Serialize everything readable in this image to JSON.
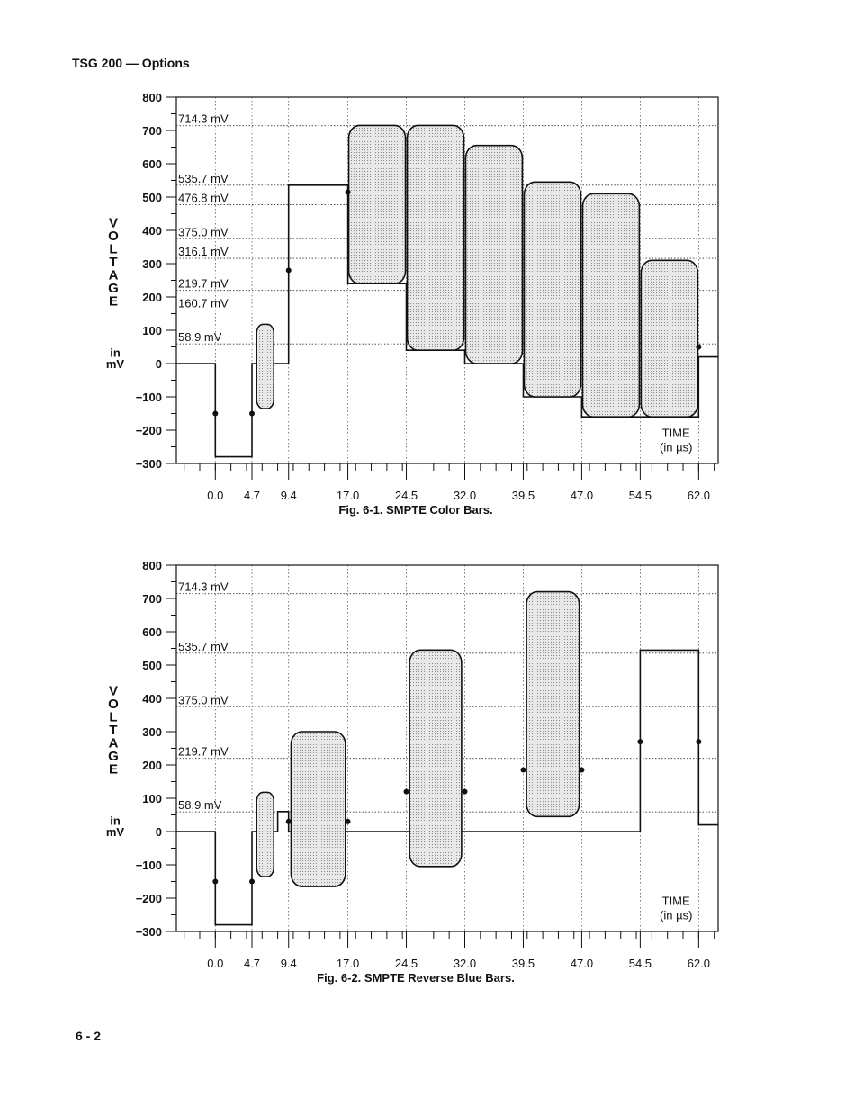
{
  "page": {
    "header": "TSG 200 — Options",
    "footer": "6 - 2"
  },
  "chart_data": [
    {
      "type": "line",
      "caption": "Fig. 6-1.  SMPTE Color Bars.",
      "ylabel": [
        "V",
        "O",
        "L",
        "T",
        "A",
        "G",
        "E"
      ],
      "yunit": [
        "in",
        "mV"
      ],
      "time_label": [
        "TIME",
        "(in µs)"
      ],
      "ylim": [
        -300,
        800
      ],
      "xlim": [
        -5,
        64.5
      ],
      "y_ticks": [
        800,
        700,
        600,
        500,
        400,
        300,
        200,
        100,
        0,
        -100,
        -200,
        -300
      ],
      "y_tick_labels": [
        "800",
        "700",
        "600",
        "500",
        "400",
        "300",
        "200",
        "100",
        "0",
        "−100",
        "−200",
        "−300"
      ],
      "x_ticks": [
        0.0,
        4.7,
        9.4,
        17.0,
        24.5,
        32.0,
        39.5,
        47.0,
        54.5,
        62.0
      ],
      "x_tick_labels": [
        "0.0",
        "4.7",
        "9.4",
        "17.0",
        "24.5",
        "32.0",
        "39.5",
        "47.0",
        "54.5",
        "62.0"
      ],
      "reference_levels": [
        {
          "value": 714.3,
          "label": "714.3 mV"
        },
        {
          "value": 535.7,
          "label": "535.7 mV"
        },
        {
          "value": 476.8,
          "label": "476.8 mV"
        },
        {
          "value": 375.0,
          "label": "375.0 mV"
        },
        {
          "value": 316.1,
          "label": "316.1 mV"
        },
        {
          "value": 219.7,
          "label": "219.7 mV"
        },
        {
          "value": 160.7,
          "label": "160.7 mV"
        },
        {
          "value": 58.9,
          "label": "58.9 mV"
        }
      ],
      "waveform": [
        [
          -5,
          0
        ],
        [
          0,
          0
        ],
        [
          0,
          -280
        ],
        [
          4.7,
          -280
        ],
        [
          4.7,
          0
        ],
        [
          9.4,
          0
        ],
        [
          9.4,
          535.7
        ],
        [
          17,
          535.7
        ],
        [
          17,
          240
        ],
        [
          24.5,
          240
        ],
        [
          24.5,
          40
        ],
        [
          32,
          40
        ],
        [
          32,
          0
        ],
        [
          39.5,
          0
        ],
        [
          39.5,
          -100
        ],
        [
          47,
          -100
        ],
        [
          47,
          -160
        ],
        [
          54.5,
          -160
        ],
        [
          54.5,
          -160
        ],
        [
          62,
          -160
        ],
        [
          62,
          20
        ],
        [
          64.5,
          20
        ]
      ],
      "burst": {
        "x0": 5.3,
        "x1": 7.5,
        "y0": -135,
        "y1": 118
      },
      "chroma_packets": [
        {
          "x0": 17.0,
          "x1": 24.5,
          "y0": 240,
          "y1": 715
        },
        {
          "x0": 24.5,
          "x1": 32.0,
          "y0": 40,
          "y1": 715
        },
        {
          "x0": 32.0,
          "x1": 39.5,
          "y0": 0,
          "y1": 655
        },
        {
          "x0": 39.5,
          "x1": 47.0,
          "y0": -100,
          "y1": 545
        },
        {
          "x0": 47.0,
          "x1": 54.5,
          "y0": -160,
          "y1": 510
        },
        {
          "x0": 54.5,
          "x1": 62.0,
          "y0": -160,
          "y1": 310
        }
      ],
      "markers": [
        {
          "x": 0.0,
          "y": -150
        },
        {
          "x": 4.7,
          "y": -150
        },
        {
          "x": 9.4,
          "y": 280
        },
        {
          "x": 17.0,
          "y": 515
        },
        {
          "x": 62.0,
          "y": 50
        }
      ]
    },
    {
      "type": "line",
      "caption": "Fig. 6-2.  SMPTE Reverse Blue Bars.",
      "ylabel": [
        "V",
        "O",
        "L",
        "T",
        "A",
        "G",
        "E"
      ],
      "yunit": [
        "in",
        "mV"
      ],
      "time_label": [
        "TIME",
        "(in µs)"
      ],
      "ylim": [
        -300,
        800
      ],
      "xlim": [
        -5,
        64.5
      ],
      "y_ticks": [
        800,
        700,
        600,
        500,
        400,
        300,
        200,
        100,
        0,
        -100,
        -200,
        -300
      ],
      "y_tick_labels": [
        "800",
        "700",
        "600",
        "500",
        "400",
        "300",
        "200",
        "100",
        "0",
        "−100",
        "−200",
        "−300"
      ],
      "x_ticks": [
        0.0,
        4.7,
        9.4,
        17.0,
        24.5,
        32.0,
        39.5,
        47.0,
        54.5,
        62.0
      ],
      "x_tick_labels": [
        "0.0",
        "4.7",
        "9.4",
        "17.0",
        "24.5",
        "32.0",
        "39.5",
        "47.0",
        "54.5",
        "62.0"
      ],
      "reference_levels": [
        {
          "value": 714.3,
          "label": "714.3 mV"
        },
        {
          "value": 535.7,
          "label": "535.7 mV"
        },
        {
          "value": 375.0,
          "label": "375.0 mV"
        },
        {
          "value": 219.7,
          "label": "219.7 mV"
        },
        {
          "value": 58.9,
          "label": "58.9 mV"
        }
      ],
      "waveform": [
        [
          -5,
          0
        ],
        [
          0,
          0
        ],
        [
          0,
          -280
        ],
        [
          4.7,
          -280
        ],
        [
          4.7,
          0
        ],
        [
          8.0,
          0
        ],
        [
          8.0,
          60
        ],
        [
          9.4,
          60
        ],
        [
          9.4,
          0
        ],
        [
          24.5,
          0
        ],
        [
          24.5,
          0
        ],
        [
          32,
          0
        ],
        [
          32,
          0
        ],
        [
          39.5,
          0
        ],
        [
          39.5,
          0
        ],
        [
          47,
          0
        ],
        [
          54.5,
          0
        ],
        [
          54.5,
          545
        ],
        [
          62,
          545
        ],
        [
          62,
          20
        ],
        [
          64.5,
          20
        ]
      ],
      "burst": {
        "x0": 5.3,
        "x1": 7.5,
        "y0": -135,
        "y1": 118
      },
      "chroma_packets": [
        {
          "x0": 9.6,
          "x1": 16.8,
          "y0": -165,
          "y1": 300
        },
        {
          "x0": 24.8,
          "x1": 31.7,
          "y0": -105,
          "y1": 545
        },
        {
          "x0": 39.8,
          "x1": 46.8,
          "y0": 45,
          "y1": 720
        }
      ],
      "markers": [
        {
          "x": 0.0,
          "y": -150
        },
        {
          "x": 4.7,
          "y": -150
        },
        {
          "x": 9.4,
          "y": 30
        },
        {
          "x": 17.0,
          "y": 30
        },
        {
          "x": 24.5,
          "y": 120
        },
        {
          "x": 32.0,
          "y": 120
        },
        {
          "x": 39.5,
          "y": 185
        },
        {
          "x": 47.0,
          "y": 185
        },
        {
          "x": 54.5,
          "y": 270
        },
        {
          "x": 62.0,
          "y": 270
        }
      ]
    }
  ]
}
